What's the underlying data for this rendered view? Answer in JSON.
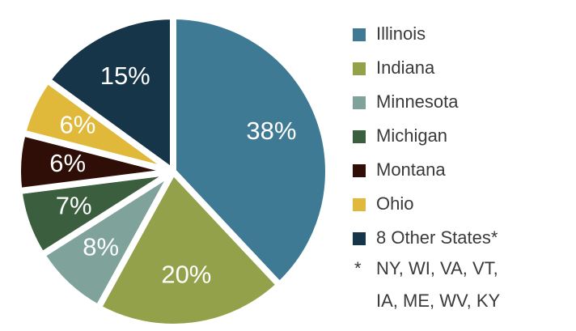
{
  "chart_data": {
    "type": "pie",
    "categories": [
      "Illinois",
      "Indiana",
      "Minnesota",
      "Michigan",
      "Montana",
      "Ohio",
      "8 Other States*"
    ],
    "values": [
      38,
      20,
      8,
      7,
      6,
      6,
      15
    ],
    "value_labels": [
      "38%",
      "20%",
      "8%",
      "7%",
      "6%",
      "6%",
      "15%"
    ],
    "colors": [
      "#3e7a93",
      "#93a24a",
      "#7fa39b",
      "#3b5e3f",
      "#2e0e07",
      "#e0b83a",
      "#163548"
    ],
    "footnote_marker": "*",
    "footnote": [
      "NY, WI, VA, VT,",
      "IA, ME, WV, KY"
    ]
  }
}
